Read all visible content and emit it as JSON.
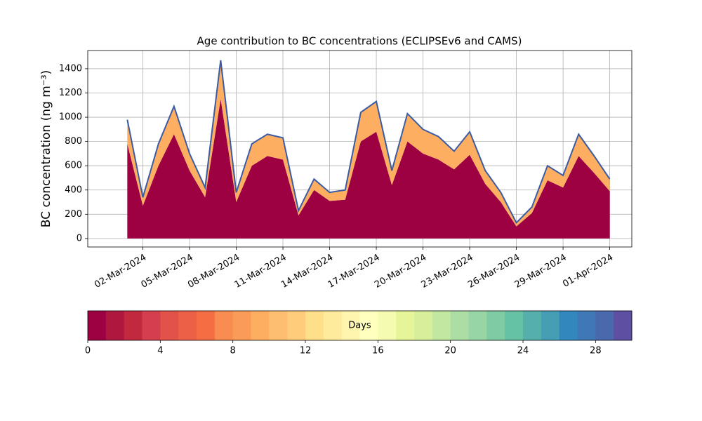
{
  "chart_data": {
    "type": "stacked-area",
    "title": "Age contribution to BC concentrations (ECLIPSEv6 and CAMS)",
    "ylabel": "BC concentration (ng m⁻³)",
    "x": [
      "2024-03-01",
      "2024-03-02",
      "2024-03-03",
      "2024-03-04",
      "2024-03-05",
      "2024-03-06",
      "2024-03-07",
      "2024-03-08",
      "2024-03-09",
      "2024-03-10",
      "2024-03-11",
      "2024-03-12",
      "2024-03-13",
      "2024-03-14",
      "2024-03-15",
      "2024-03-16",
      "2024-03-17",
      "2024-03-18",
      "2024-03-19",
      "2024-03-20",
      "2024-03-21",
      "2024-03-22",
      "2024-03-23",
      "2024-03-24",
      "2024-03-25",
      "2024-03-26",
      "2024-03-27",
      "2024-03-28",
      "2024-03-29",
      "2024-03-30",
      "2024-03-31",
      "2024-04-01"
    ],
    "series": [
      {
        "kind": "area",
        "color": "#9e0142",
        "values": [
          780,
          270,
          600,
          860,
          560,
          340,
          1150,
          300,
          600,
          680,
          650,
          190,
          400,
          310,
          320,
          800,
          880,
          440,
          800,
          700,
          650,
          570,
          690,
          450,
          300,
          100,
          210,
          480,
          420,
          680,
          540,
          390
        ]
      },
      {
        "kind": "area",
        "color": "#fdae61",
        "values": [
          200,
          70,
          180,
          230,
          140,
          80,
          320,
          80,
          180,
          180,
          180,
          40,
          90,
          70,
          80,
          240,
          250,
          120,
          230,
          200,
          190,
          150,
          190,
          110,
          80,
          30,
          50,
          120,
          100,
          180,
          140,
          100
        ]
      },
      {
        "kind": "line",
        "color": "#3b5ba5",
        "values": [
          980,
          340,
          780,
          1090,
          700,
          420,
          1470,
          380,
          780,
          860,
          830,
          230,
          490,
          380,
          400,
          1040,
          1130,
          560,
          1030,
          900,
          840,
          720,
          880,
          560,
          380,
          130,
          260,
          600,
          520,
          860,
          680,
          490
        ]
      }
    ],
    "xlim": [
      "2024-02-27T11:00",
      "2024-04-02T10:00"
    ],
    "xticks": [
      {
        "value": "2024-03-02",
        "label": "02-Mar-2024"
      },
      {
        "value": "2024-03-05",
        "label": "05-Mar-2024"
      },
      {
        "value": "2024-03-08",
        "label": "08-Mar-2024"
      },
      {
        "value": "2024-03-11",
        "label": "11-Mar-2024"
      },
      {
        "value": "2024-03-14",
        "label": "14-Mar-2024"
      },
      {
        "value": "2024-03-17",
        "label": "17-Mar-2024"
      },
      {
        "value": "2024-03-20",
        "label": "20-Mar-2024"
      },
      {
        "value": "2024-03-23",
        "label": "23-Mar-2024"
      },
      {
        "value": "2024-03-26",
        "label": "26-Mar-2024"
      },
      {
        "value": "2024-03-29",
        "label": "29-Mar-2024"
      },
      {
        "value": "2024-04-01",
        "label": "01-Apr-2024"
      }
    ],
    "ylim": [
      -70,
      1550
    ],
    "yticks": [
      0,
      200,
      400,
      600,
      800,
      1000,
      1200,
      1400
    ],
    "grid": true,
    "colorbar": {
      "label": "Days",
      "lim": [
        0,
        30
      ],
      "ticks": [
        0,
        4,
        8,
        12,
        16,
        20,
        24,
        28
      ],
      "colors": [
        "#9e0142",
        "#b0173f",
        "#c2293f",
        "#d53e4f",
        "#e2514a",
        "#eb6046",
        "#f46d43",
        "#f88c51",
        "#fa9b58",
        "#fdae61",
        "#fdbf6f",
        "#fecc7b",
        "#fee08b",
        "#feeb9b",
        "#fff5ae",
        "#ffffbf",
        "#f5fbb0",
        "#e6f598",
        "#d7ef9b",
        "#c2e7a0",
        "#abdda4",
        "#98d5a4",
        "#7fcba4",
        "#66c2a5",
        "#55b0ab",
        "#459eb4",
        "#3288bd",
        "#3f78b5",
        "#4a68ac",
        "#5e4fa2"
      ]
    }
  }
}
